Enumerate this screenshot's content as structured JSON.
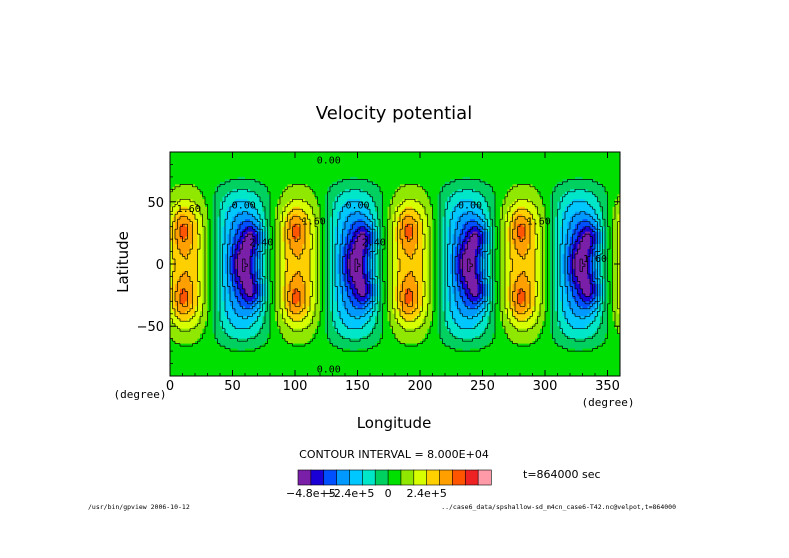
{
  "chart_data": {
    "type": "heatmap",
    "title": "Velocity potential",
    "xlabel": "Longitude",
    "ylabel": "Latitude",
    "x_unit": "(degree)",
    "y_unit": "(degree)",
    "xlim": [
      0,
      360
    ],
    "ylim": [
      -90,
      90
    ],
    "x_ticks": [
      0,
      50,
      100,
      150,
      200,
      250,
      300,
      350
    ],
    "y_ticks": [
      -50,
      0,
      50
    ],
    "x_tick_labels": [
      "0",
      "50",
      "100",
      "150",
      "200",
      "250",
      "300",
      "350"
    ],
    "y_tick_labels": [
      "−50",
      "0",
      "50"
    ],
    "contour_interval_text": "CONTOUR INTERVAL = 8.000E+04",
    "contour_interval": 80000,
    "time_text": "t=864000 sec",
    "contour_labels": [
      {
        "text": "0.00",
        "lon": 127,
        "lat": 84
      },
      {
        "text": "0.00",
        "lon": 127,
        "lat": -84
      },
      {
        "text": "0.00",
        "lon": 59,
        "lat": 48
      },
      {
        "text": "0.00",
        "lon": 150,
        "lat": 48
      },
      {
        "text": "0.00",
        "lon": 240,
        "lat": 48
      },
      {
        "text": "1.60",
        "lon": 15,
        "lat": 45
      },
      {
        "text": "1.60",
        "lon": 115,
        "lat": 35
      },
      {
        "text": "1.60",
        "lon": 295,
        "lat": 35
      },
      {
        "text": "2.40",
        "lon": 73,
        "lat": 18
      },
      {
        "text": "2.40",
        "lon": 163,
        "lat": 18
      },
      {
        "text": "1.60",
        "lon": 340,
        "lat": 5
      }
    ],
    "colorbar": {
      "colors": [
        "#7a1fa8",
        "#1a00d4",
        "#0050ff",
        "#0099ff",
        "#00c8ff",
        "#00e6c8",
        "#00d060",
        "#00e000",
        "#90e800",
        "#d8ff00",
        "#ffd000",
        "#ffa000",
        "#ff5500",
        "#ee2222",
        "#ff9aa8"
      ],
      "tick_labels": [
        "−4.8e+5",
        "−2.4e+5",
        "0",
        "2.4e+5"
      ],
      "tick_values": [
        -480000,
        -240000,
        0,
        240000
      ],
      "level_min": -560000,
      "level_max": 640000
    },
    "field_model": {
      "description": "wavenumber-4 velocity potential pattern",
      "wavenumber": 4,
      "max_abs": 560000
    }
  },
  "footer": {
    "left": "/usr/bin/gpview  2006-10-12",
    "right": "../case6_data/spshallow-sd_m4cn_case6-T42.nc@velpot,t=864000"
  },
  "colors": {
    "background": "#ffffff",
    "frame": "#000000"
  }
}
